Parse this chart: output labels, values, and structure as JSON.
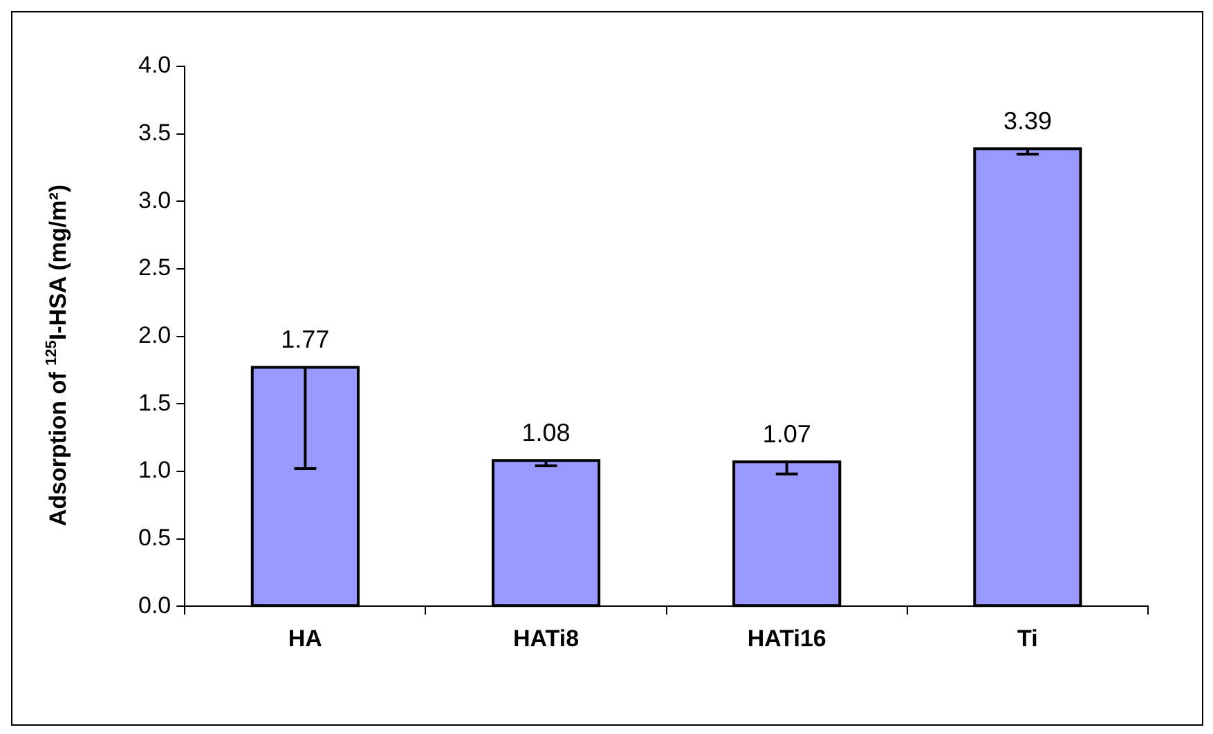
{
  "chart_data": {
    "type": "bar",
    "ylabel": "Adsorption of $^{125}$I-HSA (mg/m²)",
    "categories": [
      "HA",
      "HATi8",
      "HATi16",
      "Ti"
    ],
    "values": [
      1.77,
      1.08,
      1.07,
      3.39
    ],
    "color": "#9999ff",
    "errors": [
      [
        1.02,
        1.77
      ],
      [
        1.04,
        1.08
      ],
      [
        0.98,
        1.07
      ],
      [
        3.35,
        3.39
      ]
    ],
    "ylim": [
      0,
      4
    ],
    "yticks": [
      {
        "value": 0,
        "label": "0.0"
      },
      0.5,
      {
        "value": 1,
        "label": "1.0"
      },
      1.5,
      {
        "value": 2,
        "label": "2.0"
      },
      2.5,
      {
        "value": 3,
        "label": "3.0"
      },
      3.5,
      {
        "value": 4,
        "label": "4.0"
      }
    ],
    "grid": false,
    "legend": false,
    "data_labels": true
  }
}
